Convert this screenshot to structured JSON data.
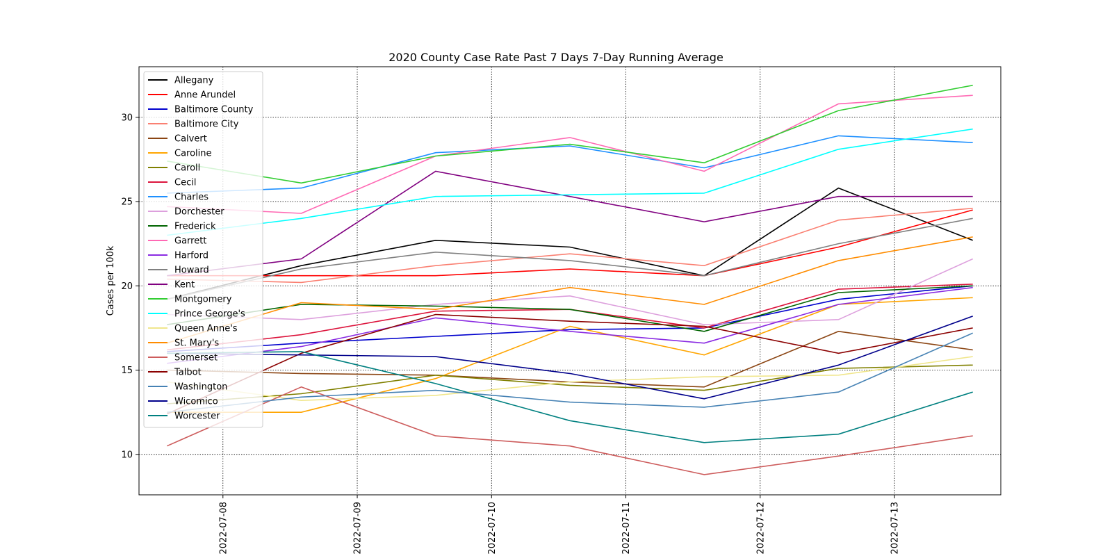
{
  "chart_data": {
    "type": "line",
    "title": "2020 County Case Rate  Past 7 Days 7-Day Running Average",
    "xlabel": "",
    "ylabel": "Cases per 100k",
    "x_ticks": [
      "2022-07-08",
      "2022-07-09",
      "2022-07-10",
      "2022-07-11",
      "2022-07-12",
      "2022-07-13"
    ],
    "x": [
      "2022-07-07 14:00",
      "2022-07-08 14:00",
      "2022-07-09 14:00",
      "2022-07-10 14:00",
      "2022-07-11 14:00",
      "2022-07-12 14:00",
      "2022-07-13 14:00"
    ],
    "xlim": [
      "2022-07-07 09:00",
      "2022-07-13 19:00"
    ],
    "ylim": [
      7.6,
      33.0
    ],
    "y_ticks": [
      10,
      15,
      20,
      25,
      30
    ],
    "grid": true,
    "legend": "upper-left",
    "series": [
      {
        "name": "Allegany",
        "color": "#000000",
        "values": [
          19.2,
          21.2,
          22.7,
          22.3,
          20.6,
          25.8,
          22.7
        ]
      },
      {
        "name": "Anne Arundel",
        "color": "#ff0000",
        "values": [
          20.6,
          20.6,
          20.6,
          21.0,
          20.6,
          22.3,
          24.5
        ]
      },
      {
        "name": "Baltimore County",
        "color": "#0000cd",
        "values": [
          16.1,
          16.6,
          17.0,
          17.4,
          17.5,
          19.2,
          20.0
        ]
      },
      {
        "name": "Baltimore City",
        "color": "#fa8072",
        "values": [
          20.4,
          20.2,
          21.2,
          21.9,
          21.2,
          23.9,
          24.6
        ]
      },
      {
        "name": "Calvert",
        "color": "#8b4513",
        "values": [
          15.0,
          14.8,
          14.7,
          14.3,
          14.0,
          17.3,
          16.2
        ]
      },
      {
        "name": "Caroline",
        "color": "#ffa500",
        "values": [
          12.5,
          12.5,
          14.5,
          17.6,
          15.9,
          18.9,
          19.3
        ]
      },
      {
        "name": "Caroll",
        "color": "#808000",
        "values": [
          13.0,
          13.6,
          14.7,
          14.1,
          13.8,
          15.1,
          15.3
        ]
      },
      {
        "name": "Cecil",
        "color": "#dc143c",
        "values": [
          16.2,
          17.1,
          18.5,
          18.6,
          17.5,
          19.8,
          20.1
        ]
      },
      {
        "name": "Charles",
        "color": "#1e90ff",
        "values": [
          25.5,
          25.8,
          27.9,
          28.3,
          27.0,
          28.9,
          28.5
        ]
      },
      {
        "name": "Dorchester",
        "color": "#dda0dd",
        "values": [
          18.3,
          18.0,
          18.9,
          19.4,
          17.7,
          18.0,
          21.6
        ]
      },
      {
        "name": "Frederick",
        "color": "#006400",
        "values": [
          17.7,
          18.9,
          18.8,
          18.6,
          17.3,
          19.6,
          20.0
        ]
      },
      {
        "name": "Garrett",
        "color": "#ff69b4",
        "values": [
          24.7,
          24.3,
          27.7,
          28.8,
          26.8,
          30.8,
          31.3
        ]
      },
      {
        "name": "Harford",
        "color": "#8a2be2",
        "values": [
          15.4,
          16.4,
          18.1,
          17.3,
          16.6,
          18.9,
          19.9
        ]
      },
      {
        "name": "Howard",
        "color": "#808080",
        "values": [
          19.2,
          21.0,
          22.0,
          21.5,
          20.6,
          22.5,
          24.0
        ]
      },
      {
        "name": "Kent",
        "color": "#800080",
        "values": [
          20.6,
          21.6,
          26.8,
          25.3,
          23.8,
          25.3,
          25.3
        ]
      },
      {
        "name": "Montgomery",
        "color": "#32cd32",
        "values": [
          27.4,
          26.1,
          27.7,
          28.4,
          27.3,
          30.4,
          31.9
        ]
      },
      {
        "name": "Prince George's",
        "color": "#00ffff",
        "values": [
          23.0,
          24.0,
          25.3,
          25.4,
          25.5,
          28.1,
          29.3
        ]
      },
      {
        "name": "Queen Anne's",
        "color": "#f0e68c",
        "values": [
          14.3,
          13.2,
          13.5,
          14.3,
          14.6,
          14.7,
          15.8
        ]
      },
      {
        "name": "St. Mary's",
        "color": "#ff8c00",
        "values": [
          16.6,
          19.0,
          18.6,
          19.9,
          18.9,
          21.5,
          22.9
        ]
      },
      {
        "name": "Somerset",
        "color": "#cd5c5c",
        "values": [
          10.5,
          14.0,
          11.1,
          10.5,
          8.8,
          9.9,
          11.1
        ]
      },
      {
        "name": "Talbot",
        "color": "#8b0000",
        "values": [
          12.4,
          16.0,
          18.3,
          17.9,
          17.6,
          16.0,
          17.5
        ]
      },
      {
        "name": "Washington",
        "color": "#4682b4",
        "values": [
          12.5,
          13.4,
          13.8,
          13.1,
          12.8,
          13.7,
          17.2
        ]
      },
      {
        "name": "Wicomico",
        "color": "#00008b",
        "values": [
          16.0,
          15.9,
          15.8,
          14.8,
          13.3,
          15.3,
          18.2
        ]
      },
      {
        "name": "Worcester",
        "color": "#008080",
        "values": [
          16.0,
          16.1,
          14.2,
          12.0,
          10.7,
          11.2,
          13.7
        ]
      }
    ]
  }
}
